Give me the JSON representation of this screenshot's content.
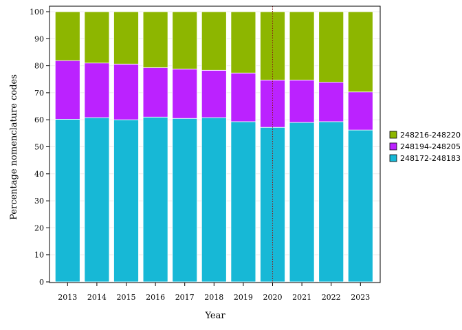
{
  "chart_data": {
    "type": "bar",
    "stacked": true,
    "categories": [
      "2013",
      "2014",
      "2015",
      "2016",
      "2017",
      "2018",
      "2019",
      "2020",
      "2021",
      "2022",
      "2023"
    ],
    "series": [
      {
        "name": "248172-248183",
        "color": "#17b8d6",
        "values": [
          60.2,
          60.8,
          60.0,
          61.0,
          60.5,
          60.8,
          59.3,
          57.2,
          59.0,
          59.3,
          56.2
        ]
      },
      {
        "name": "248194-248205",
        "color": "#bb22ff",
        "values": [
          21.7,
          20.2,
          20.6,
          18.3,
          18.3,
          17.5,
          18.0,
          17.5,
          15.7,
          14.6,
          14.1
        ]
      },
      {
        "name": "248216-248220",
        "color": "#8db600",
        "values": [
          18.1,
          19.0,
          19.4,
          20.7,
          21.2,
          21.7,
          22.7,
          25.3,
          25.3,
          26.1,
          29.7
        ]
      }
    ],
    "xlabel": "Year",
    "ylabel": "Percentage nomenclature codes",
    "ylim": [
      0,
      100
    ],
    "yticks": [
      0,
      10,
      20,
      30,
      40,
      50,
      60,
      70,
      80,
      90,
      100
    ],
    "reference_line_x": "2020",
    "grid": true,
    "legend_position": "right",
    "legend_order": [
      "248216-248220",
      "248194-248205",
      "248172-248183"
    ]
  }
}
